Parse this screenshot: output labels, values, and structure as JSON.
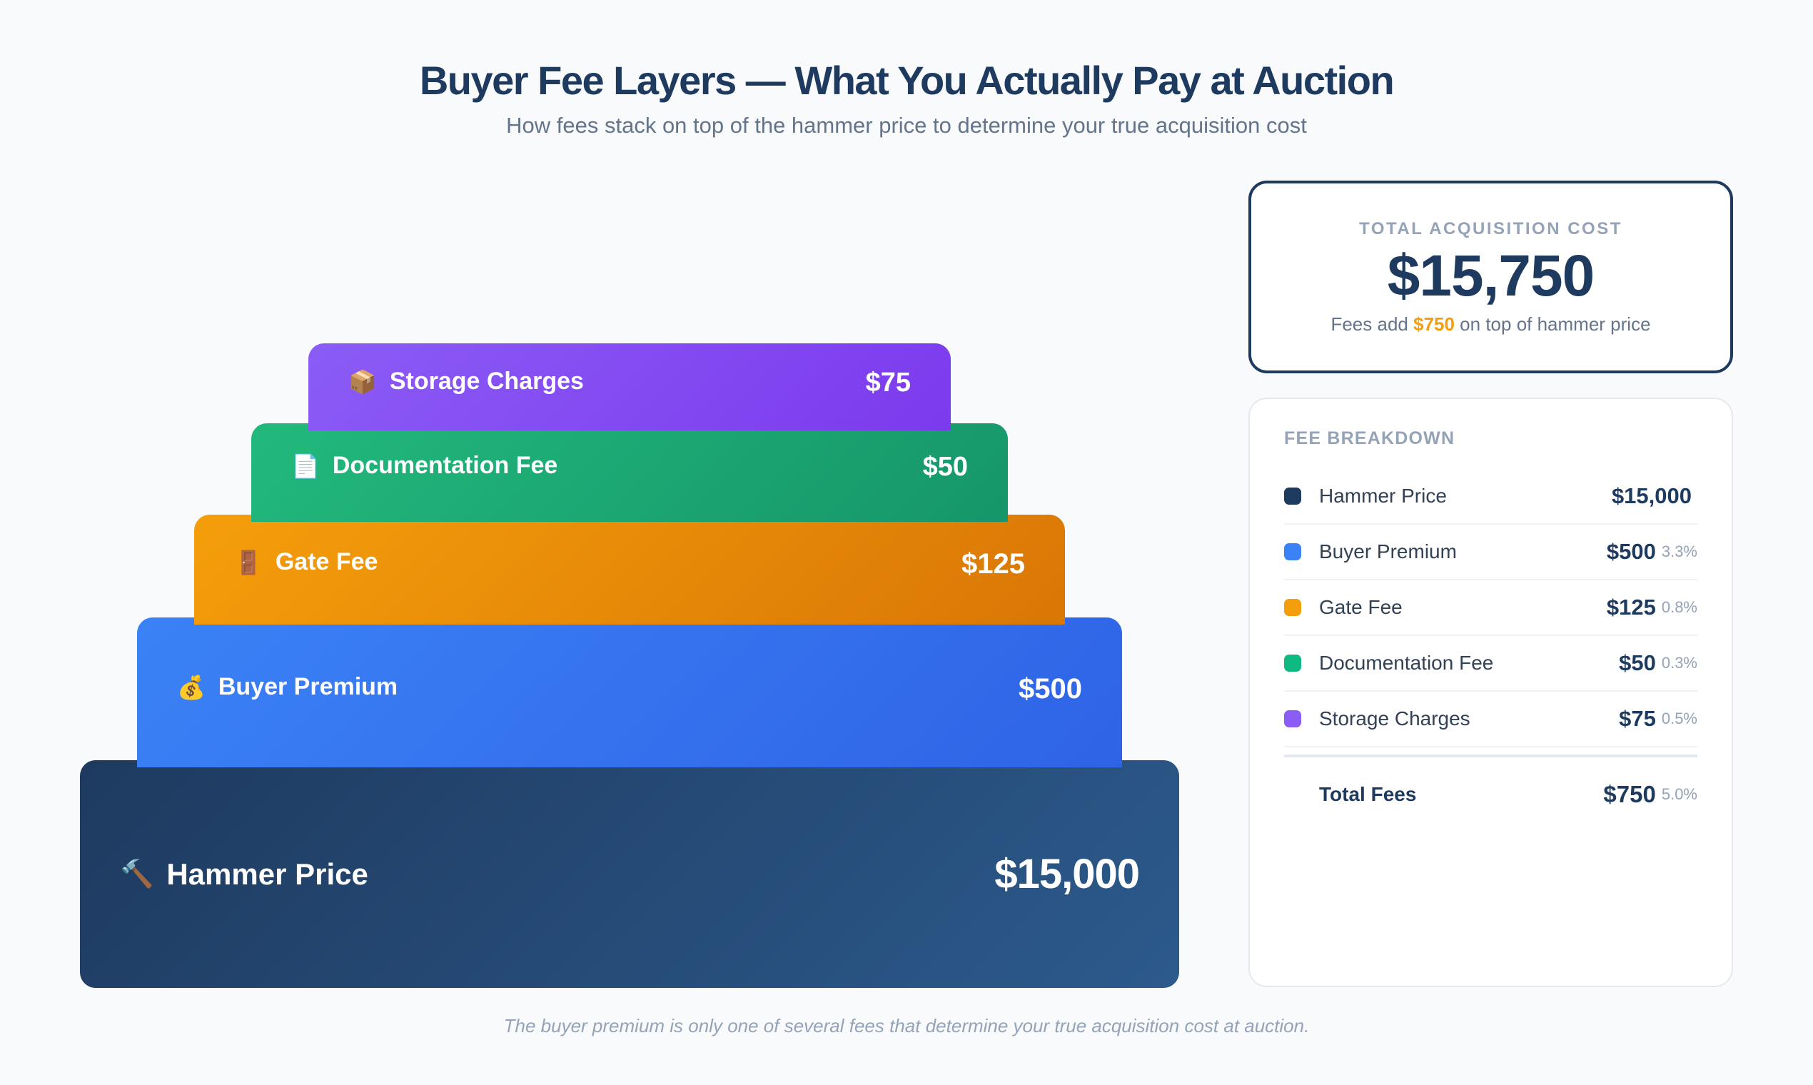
{
  "header": {
    "title": "Buyer Fee Layers — What You Actually Pay at Auction",
    "subtitle": "How fees stack on top of the hammer price to determine your true acquisition cost"
  },
  "layers": {
    "storage": {
      "icon": "📦",
      "icon_name": "package-icon",
      "label": "Storage Charges",
      "value": "$75",
      "color": "#8b5cf6"
    },
    "documentation": {
      "icon": "📄",
      "icon_name": "document-icon",
      "label": "Documentation Fee",
      "value": "$50",
      "color": "#10b981"
    },
    "gate": {
      "icon": "🚪",
      "icon_name": "door-icon",
      "label": "Gate Fee",
      "value": "$125",
      "color": "#f59e0b"
    },
    "premium": {
      "icon": "💰",
      "icon_name": "money-bag-icon",
      "label": "Buyer Premium",
      "value": "$500",
      "color": "#3b82f6"
    },
    "hammer": {
      "icon": "🔨",
      "icon_name": "hammer-icon",
      "label": "Hammer Price",
      "value": "$15,000",
      "color": "#1e3a5f"
    }
  },
  "total_card": {
    "label": "TOTAL ACQUISITION COST",
    "value": "$15,750",
    "note_prefix": "Fees add ",
    "note_accent": "$750",
    "note_suffix": " on top of hammer price"
  },
  "breakdown": {
    "title": "FEE BREAKDOWN",
    "rows": [
      {
        "name": "Hammer Price",
        "amount": "$15,000",
        "pct": "",
        "color": "#1e3a5f"
      },
      {
        "name": "Buyer Premium",
        "amount": "$500",
        "pct": "3.3%",
        "color": "#3b82f6"
      },
      {
        "name": "Gate Fee",
        "amount": "$125",
        "pct": "0.8%",
        "color": "#f59e0b"
      },
      {
        "name": "Documentation Fee",
        "amount": "$50",
        "pct": "0.3%",
        "color": "#10b981"
      },
      {
        "name": "Storage Charges",
        "amount": "$75",
        "pct": "0.5%",
        "color": "#8b5cf6"
      }
    ],
    "total": {
      "name": "Total Fees",
      "amount": "$750",
      "pct": "5.0%"
    }
  },
  "footer": {
    "note": "The buyer premium is only one of several fees that determine your true acquisition cost at auction."
  },
  "chart_data": {
    "type": "bar",
    "title": "Buyer Fee Layers — What You Actually Pay at Auction",
    "subtitle": "How fees stack on top of the hammer price to determine your true acquisition cost",
    "layout": "stacked-pyramid",
    "categories": [
      "Hammer Price",
      "Buyer Premium",
      "Gate Fee",
      "Documentation Fee",
      "Storage Charges"
    ],
    "values": [
      15000,
      500,
      125,
      50,
      75
    ],
    "percent_of_hammer": [
      null,
      3.3,
      0.8,
      0.3,
      0.5
    ],
    "colors": [
      "#1e3a5f",
      "#3b82f6",
      "#f59e0b",
      "#10b981",
      "#8b5cf6"
    ],
    "total_fees": 750,
    "total_fees_pct": 5.0,
    "total_acquisition_cost": 15750,
    "xlabel": "",
    "ylabel": "",
    "legend_position": "right"
  }
}
